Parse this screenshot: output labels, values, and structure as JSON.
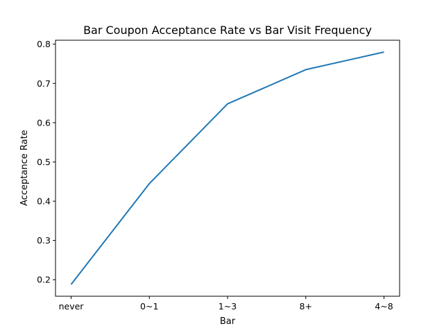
{
  "chart_data": {
    "type": "line",
    "title": "Bar Coupon Acceptance Rate vs Bar Visit Frequency",
    "xlabel": "Bar",
    "ylabel": "Acceptance Rate",
    "categories": [
      "never",
      "0~1",
      "1~3",
      "8+",
      "4~8"
    ],
    "series": [
      {
        "values": [
          0.188,
          0.445,
          0.648,
          0.735,
          0.78
        ],
        "color": "#1f77b4"
      }
    ],
    "yticks": [
      0.2,
      0.3,
      0.4,
      0.5,
      0.6,
      0.7,
      0.8
    ],
    "ytick_labels": [
      "0.2",
      "0.3",
      "0.4",
      "0.5",
      "0.6",
      "0.7",
      "0.8"
    ],
    "ylim": [
      0.158,
      0.81
    ],
    "grid": false,
    "legend": "none"
  }
}
